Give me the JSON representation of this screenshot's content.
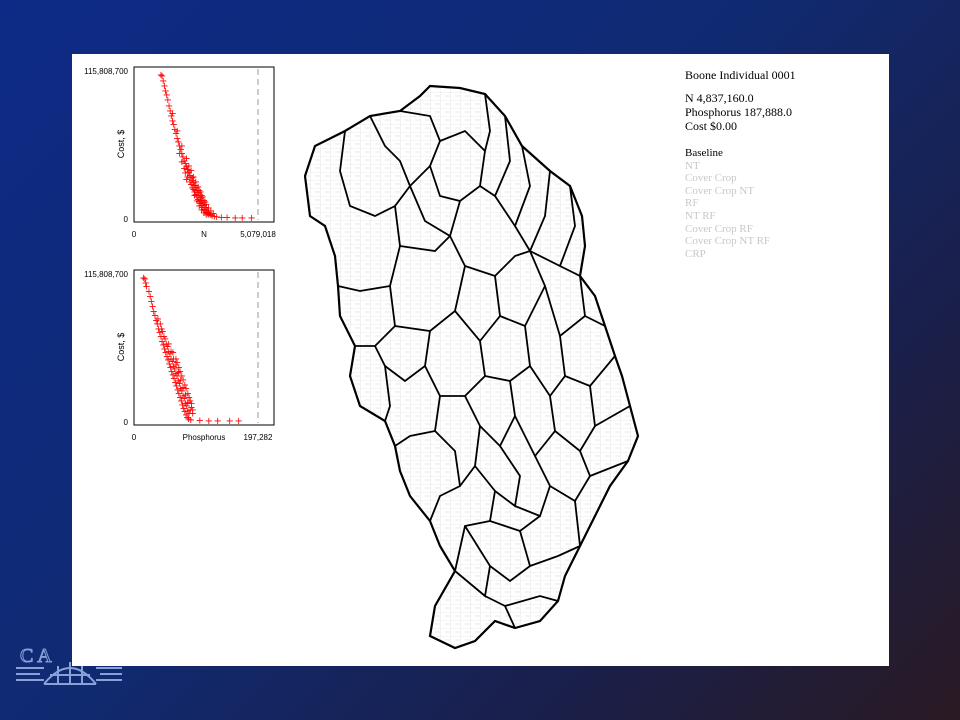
{
  "slide": {
    "legend": {
      "title": "Boone Individual 0001",
      "stats": [
        {
          "label": "N",
          "value": "4,837,160.0"
        },
        {
          "label": "Phosphorus",
          "value": "187,888.0"
        },
        {
          "label": "Cost",
          "value": "$0.00"
        }
      ],
      "scenarios": [
        {
          "label": "Baseline",
          "active": true
        },
        {
          "label": "NT",
          "active": false
        },
        {
          "label": "Cover Crop",
          "active": false
        },
        {
          "label": "Cover Crop NT",
          "active": false
        },
        {
          "label": "RF",
          "active": false
        },
        {
          "label": "NT RF",
          "active": false
        },
        {
          "label": "Cover Crop RF",
          "active": false
        },
        {
          "label": "Cover Crop NT RF",
          "active": false
        },
        {
          "label": "CRP",
          "active": false
        }
      ]
    },
    "logo_letters": "C A",
    "map_description_icon": "watershed-map"
  },
  "chart_data": [
    {
      "type": "scatter",
      "xlabel": "N",
      "ylabel": "Cost, $",
      "xlim": [
        0,
        5079018
      ],
      "ylim": [
        0,
        115808700
      ],
      "x_tick_labels": [
        "0",
        "5,079,018"
      ],
      "y_tick_labels": [
        "0",
        "115,808,700"
      ],
      "marker": "+",
      "color": "#ff0000",
      "reference_line_x": 5079018,
      "series": [
        {
          "points": [
            [
              900000,
              115000000
            ],
            [
              950000,
              114000000
            ],
            [
              1000000,
              110000000
            ],
            [
              1050000,
              106000000
            ],
            [
              1100000,
              102000000
            ],
            [
              1150000,
              99000000
            ],
            [
              1200000,
              95000000
            ],
            [
              1250000,
              90000000
            ],
            [
              1300000,
              86000000
            ],
            [
              1350000,
              82000000
            ],
            [
              1400000,
              78000000
            ],
            [
              1450000,
              75000000
            ],
            [
              1500000,
              71000000
            ],
            [
              1550000,
              68000000
            ],
            [
              1600000,
              64000000
            ],
            [
              1650000,
              61000000
            ],
            [
              1700000,
              58000000
            ],
            [
              1750000,
              55000000
            ],
            [
              1800000,
              52000000
            ],
            [
              1850000,
              49000000
            ],
            [
              1900000,
              46000000
            ],
            [
              1950000,
              44000000
            ],
            [
              2000000,
              41000000
            ],
            [
              2050000,
              39000000
            ],
            [
              2100000,
              36000000
            ],
            [
              2150000,
              34000000
            ],
            [
              2200000,
              32000000
            ],
            [
              2250000,
              30000000
            ],
            [
              2300000,
              28000000
            ],
            [
              2350000,
              26000000
            ],
            [
              2400000,
              24000000
            ],
            [
              2450000,
              22000000
            ],
            [
              2500000,
              20000000
            ],
            [
              2550000,
              18000000
            ],
            [
              2600000,
              16000000
            ],
            [
              2650000,
              14000000
            ],
            [
              2700000,
              12000000
            ],
            [
              2750000,
              10000000
            ],
            [
              2800000,
              8500000
            ],
            [
              2850000,
              7000000
            ],
            [
              2900000,
              5500000
            ],
            [
              2950000,
              4500000
            ],
            [
              3000000,
              3500000
            ],
            [
              3050000,
              2500000
            ],
            [
              3100000,
              1800000
            ],
            [
              3200000,
              1200000
            ],
            [
              3300000,
              800000
            ],
            [
              3500000,
              500000
            ],
            [
              3750000,
              300000
            ],
            [
              4100000,
              200000
            ],
            [
              4400000,
              100000
            ],
            [
              4800000,
              0
            ],
            [
              1400000,
              84000000
            ],
            [
              1600000,
              70000000
            ],
            [
              1800000,
              58000000
            ],
            [
              2000000,
              48000000
            ],
            [
              2100000,
              42000000
            ],
            [
              2200000,
              38000000
            ],
            [
              2300000,
              33000000
            ],
            [
              2400000,
              29000000
            ],
            [
              2500000,
              25000000
            ],
            [
              2600000,
              21000000
            ],
            [
              2700000,
              17000000
            ],
            [
              2800000,
              13000000
            ],
            [
              1700000,
              52000000
            ],
            [
              1900000,
              40000000
            ],
            [
              2050000,
              33000000
            ],
            [
              2200000,
              27000000
            ],
            [
              2350000,
              21000000
            ],
            [
              2450000,
              17000000
            ],
            [
              2550000,
              13000000
            ],
            [
              2650000,
              10000000
            ],
            [
              2750000,
              7000000
            ],
            [
              2850000,
              4500000
            ],
            [
              2950000,
              2800000
            ],
            [
              1950000,
              36000000
            ],
            [
              2150000,
              29000000
            ],
            [
              2300000,
              23000000
            ],
            [
              2400000,
              19000000
            ],
            [
              2500000,
              15000000
            ],
            [
              2600000,
              11500000
            ],
            [
              2700000,
              8500000
            ],
            [
              2800000,
              5800000
            ],
            [
              2900000,
              3500000
            ],
            [
              2000000,
              31000000
            ],
            [
              2250000,
              24000000
            ],
            [
              2350000,
              18000000
            ],
            [
              2450000,
              13500000
            ],
            [
              2550000,
              9500000
            ],
            [
              2650000,
              6500000
            ],
            [
              2750000,
              4000000
            ],
            [
              2850000,
              2500000
            ],
            [
              1800000,
              45000000
            ],
            [
              2100000,
              37000000
            ],
            [
              2250000,
              32000000
            ],
            [
              2400000,
              26000000
            ],
            [
              2550000,
              22000000
            ],
            [
              2650000,
              18000000
            ],
            [
              2750000,
              14000000
            ],
            [
              2850000,
              11000000
            ],
            [
              2950000,
              8000000
            ],
            [
              3050000,
              5500000
            ],
            [
              3150000,
              3500000
            ]
          ]
        }
      ]
    },
    {
      "type": "scatter",
      "xlabel": "Phosphorus",
      "ylabel": "Cost, $",
      "xlim": [
        0,
        197282
      ],
      "ylim": [
        0,
        115808700
      ],
      "x_tick_labels": [
        "0",
        "197,282"
      ],
      "y_tick_labels": [
        "0",
        "115,808,700"
      ],
      "marker": "+",
      "color": "#ff0000",
      "reference_line_x": 197282,
      "series": [
        {
          "points": [
            [
              6000,
              115000000
            ],
            [
              8000,
              114000000
            ],
            [
              9500,
              111000000
            ],
            [
              11000,
              108000000
            ],
            [
              15000,
              104000000
            ],
            [
              17000,
              100000000
            ],
            [
              19000,
              96000000
            ],
            [
              21000,
              92000000
            ],
            [
              23000,
              88000000
            ],
            [
              25000,
              85000000
            ],
            [
              27000,
              81000000
            ],
            [
              29000,
              78000000
            ],
            [
              31000,
              74000000
            ],
            [
              33000,
              71000000
            ],
            [
              35000,
              68000000
            ],
            [
              37000,
              64000000
            ],
            [
              39000,
              61000000
            ],
            [
              41000,
              58000000
            ],
            [
              43000,
              55000000
            ],
            [
              45000,
              52000000
            ],
            [
              47000,
              49000000
            ],
            [
              49000,
              46000000
            ],
            [
              51000,
              43000000
            ],
            [
              53000,
              40000000
            ],
            [
              55000,
              37000000
            ],
            [
              57000,
              34000000
            ],
            [
              59000,
              31000000
            ],
            [
              61000,
              28000000
            ],
            [
              63000,
              25000000
            ],
            [
              65000,
              22000000
            ],
            [
              67000,
              19000000
            ],
            [
              69000,
              16000000
            ],
            [
              71000,
              13000000
            ],
            [
              73000,
              10000000
            ],
            [
              75000,
              7500000
            ],
            [
              77000,
              5000000
            ],
            [
              79000,
              3000000
            ],
            [
              81000,
              1500000
            ],
            [
              85000,
              800000
            ],
            [
              100000,
              300000
            ],
            [
              115000,
              200000
            ],
            [
              130000,
              100000
            ],
            [
              150000,
              50000
            ],
            [
              165000,
              0
            ],
            [
              36000,
              74000000
            ],
            [
              40000,
              68000000
            ],
            [
              44000,
              62000000
            ],
            [
              48000,
              56000000
            ],
            [
              52000,
              50000000
            ],
            [
              56000,
              44000000
            ],
            [
              60000,
              38000000
            ],
            [
              64000,
              32000000
            ],
            [
              68000,
              26000000
            ],
            [
              72000,
              20000000
            ],
            [
              76000,
              14000000
            ],
            [
              80000,
              8000000
            ],
            [
              42000,
              66000000
            ],
            [
              46000,
              60000000
            ],
            [
              50000,
              54000000
            ],
            [
              54000,
              48000000
            ],
            [
              58000,
              42000000
            ],
            [
              62000,
              36000000
            ],
            [
              66000,
              30000000
            ],
            [
              70000,
              24000000
            ],
            [
              74000,
              18000000
            ],
            [
              78000,
              12000000
            ],
            [
              82000,
              6000000
            ],
            [
              48000,
              62000000
            ],
            [
              52000,
              56000000
            ],
            [
              56000,
              50000000
            ],
            [
              60000,
              45000000
            ],
            [
              64000,
              39000000
            ],
            [
              68000,
              33000000
            ],
            [
              72000,
              27000000
            ],
            [
              76000,
              21000000
            ],
            [
              80000,
              15000000
            ],
            [
              84000,
              9000000
            ],
            [
              55000,
              55000000
            ],
            [
              60000,
              50000000
            ],
            [
              65000,
              43000000
            ],
            [
              70000,
              36000000
            ],
            [
              75000,
              29000000
            ],
            [
              80000,
              22000000
            ],
            [
              84000,
              16000000
            ],
            [
              86000,
              11000000
            ],
            [
              88000,
              6000000
            ],
            [
              30000,
              82000000
            ],
            [
              34000,
              78000000
            ],
            [
              38000,
              72000000
            ],
            [
              62000,
              47000000
            ],
            [
              67000,
              40000000
            ],
            [
              72000,
              33000000
            ],
            [
              77000,
              26000000
            ],
            [
              82000,
              19000000
            ],
            [
              86000,
              14000000
            ],
            [
              88000,
              9000000
            ]
          ]
        }
      ]
    }
  ]
}
